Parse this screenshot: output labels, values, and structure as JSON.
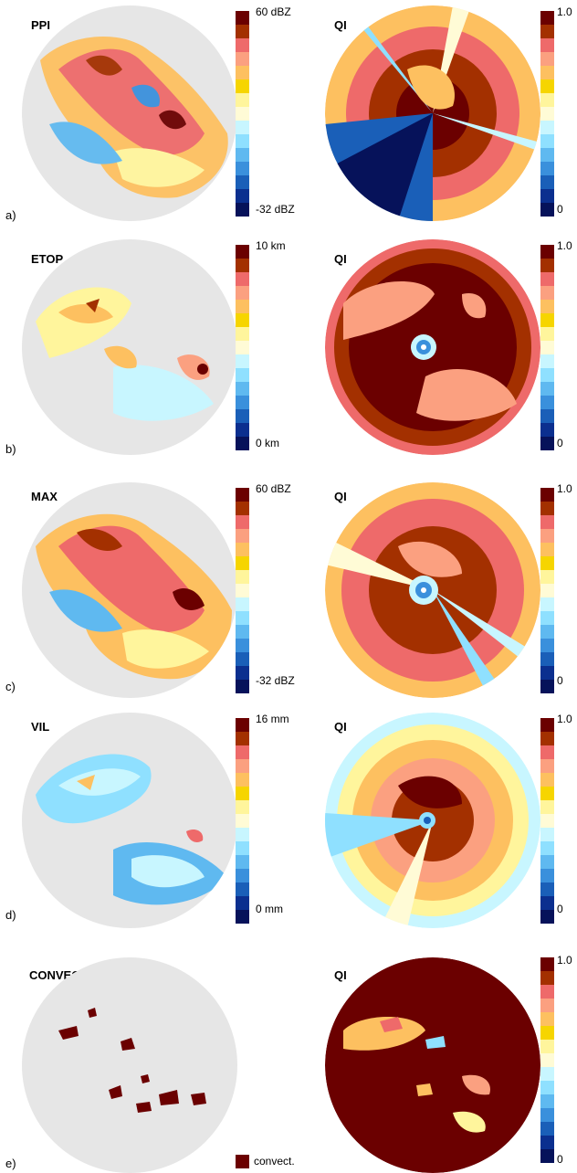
{
  "colorbar_colors": [
    "#6b0000",
    "#a33000",
    "#ee6a6a",
    "#fba080",
    "#fdc060",
    "#f6d500",
    "#fff59c",
    "#fffbd6",
    "#c8f6ff",
    "#8fe0ff",
    "#5fb9f0",
    "#3a90dc",
    "#1a5fb8",
    "#0b2f8f",
    "#06125a"
  ],
  "rows": [
    {
      "letter": "a)",
      "left_title": "PPI",
      "left_max": "60 dBZ",
      "left_min": "-32 dBZ",
      "right_title": "QI",
      "right_max": "1.0",
      "right_min": "0"
    },
    {
      "letter": "b)",
      "left_title": "ETOP",
      "left_max": "10 km",
      "left_min": "0 km",
      "right_title": "QI",
      "right_max": "1.0",
      "right_min": "0"
    },
    {
      "letter": "c)",
      "left_title": "MAX",
      "left_max": "60 dBZ",
      "left_min": "-32 dBZ",
      "right_title": "QI",
      "right_max": "1.0",
      "right_min": "0"
    },
    {
      "letter": "d)",
      "left_title": "VIL",
      "left_max": "16 mm",
      "left_min": "0 mm",
      "right_title": "QI",
      "right_max": "1.0",
      "right_min": "0"
    },
    {
      "letter": "e)",
      "left_title": "CONVECTION",
      "legend_label": "convect.",
      "right_title": "QI",
      "right_max": "1.0",
      "right_min": "0"
    }
  ]
}
